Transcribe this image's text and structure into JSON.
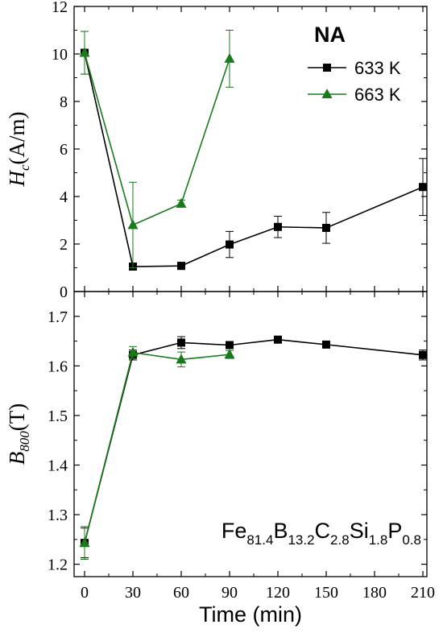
{
  "chart_data": {
    "type": "line",
    "xlabel": "Time (min)",
    "x_ticks": [
      0,
      30,
      60,
      90,
      120,
      150,
      180,
      210
    ],
    "legend_title": "NA",
    "legend_position": "top-right",
    "composition": {
      "parts": [
        {
          "el": "Fe",
          "sub": "81.4"
        },
        {
          "el": "B",
          "sub": "13.2"
        },
        {
          "el": "C",
          "sub": "2.8"
        },
        {
          "el": "Si",
          "sub": "1.8"
        },
        {
          "el": "P",
          "sub": "0.8"
        }
      ]
    },
    "panels": [
      {
        "id": "top",
        "ylabel_main": "H",
        "ylabel_sub": "c",
        "ylabel_unit": "(A/m)",
        "ylim": [
          0,
          12
        ],
        "y_ticks": [
          0,
          2,
          4,
          6,
          8,
          10,
          12
        ],
        "y_tick_labels": [
          "0",
          "2",
          "4",
          "6",
          "8",
          "10",
          "12"
        ],
        "series": [
          {
            "name": "633 K",
            "color": "#000000",
            "marker": "square",
            "x": [
              0,
              30,
              60,
              90,
              120,
              150,
              210
            ],
            "y": [
              10.05,
              1.05,
              1.08,
              1.98,
              2.72,
              2.68,
              4.4
            ],
            "err": [
              0.9,
              0.1,
              0.15,
              0.55,
              0.45,
              0.65,
              1.2
            ]
          },
          {
            "name": "663 K",
            "color": "#1a7a1a",
            "marker": "triangle",
            "x": [
              0,
              30,
              60,
              90
            ],
            "y": [
              10.05,
              2.8,
              3.7,
              9.8
            ],
            "err": [
              0.9,
              1.8,
              0.15,
              1.2
            ]
          }
        ]
      },
      {
        "id": "bottom",
        "ylabel_main": "B",
        "ylabel_sub": "800",
        "ylabel_unit": "(T)",
        "ylim": [
          1.175,
          1.75
        ],
        "y_ticks": [
          1.2,
          1.3,
          1.4,
          1.5,
          1.6,
          1.7
        ],
        "y_tick_labels": [
          "1.2",
          "1.3",
          "1.4",
          "1.5",
          "1.6",
          "1.7"
        ],
        "series": [
          {
            "name": "633 K",
            "color": "#000000",
            "marker": "square",
            "x": [
              0,
              30,
              60,
              90,
              120,
              150,
              210
            ],
            "y": [
              1.243,
              1.622,
              1.647,
              1.642,
              1.653,
              1.643,
              1.622
            ],
            "err": [
              0.03,
              0.01,
              0.012,
              0.006,
              0.006,
              0.005,
              0.01
            ]
          },
          {
            "name": "663 K",
            "color": "#1a7a1a",
            "marker": "triangle",
            "x": [
              0,
              30,
              60,
              90
            ],
            "y": [
              1.243,
              1.627,
              1.613,
              1.623
            ],
            "err": [
              0.033,
              0.012,
              0.015,
              0.008
            ]
          }
        ]
      }
    ]
  }
}
